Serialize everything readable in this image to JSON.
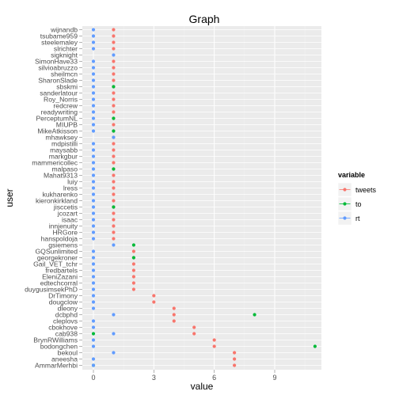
{
  "chart_data": {
    "type": "scatter",
    "title": "Graph",
    "xlabel": "value",
    "ylabel": "user",
    "xlim": [
      -0.5,
      11.3
    ],
    "x_ticks": [
      0,
      3,
      6,
      9
    ],
    "grid": true,
    "legend": {
      "title": "variable",
      "position": "right"
    },
    "users": [
      "wijnandb",
      "tsubame959",
      "steelemaley",
      "slrichter",
      "sigknight",
      "SimonHave33",
      "silvioabruzzo",
      "sheilmcn",
      "SharonSlade",
      "sbskmi",
      "sanderlatour",
      "Roy_Norris",
      "redcrew",
      "readywriting",
      "PerceptumNL",
      "MIUPB",
      "MikeAtkisson",
      "mhawksey",
      "mdpistilli",
      "maysabb",
      "markgbur",
      "mammericollec",
      "malpaso",
      "Mahat9313",
      "luiy",
      "lress",
      "kukharenko",
      "kieronkirkland",
      "jisccetis",
      "jcozart",
      "isaac",
      "innjenuity",
      "HRGore",
      "hanspoldoja",
      "gsiemens",
      "GQSunlimited",
      "georgekroner",
      "Gail_VET_tchr",
      "fredbartels",
      "EleniZazani",
      "edtechcorral",
      "duygusimsekPhD",
      "DrTimony",
      "dougclow",
      "dleony",
      "dcbphd",
      "cleplovs",
      "cbokhove",
      "cab938",
      "BrynRWilliams",
      "bodongchen",
      "bekoul",
      "aneesha",
      "AmmarMerhbi"
    ],
    "series": [
      {
        "name": "tweets",
        "color": "#F8766D",
        "values": [
          1,
          1,
          1,
          1,
          null,
          1,
          1,
          1,
          1,
          1,
          1,
          1,
          1,
          1,
          1,
          1,
          1,
          1,
          1,
          1,
          1,
          1,
          1,
          1,
          1,
          1,
          1,
          1,
          1,
          1,
          1,
          1,
          1,
          1,
          null,
          2,
          2,
          2,
          2,
          2,
          2,
          2,
          3,
          3,
          4,
          4,
          4,
          5,
          5,
          6,
          6,
          7,
          7,
          7
        ]
      },
      {
        "name": "to",
        "color": "#00BA38",
        "values": [
          null,
          null,
          null,
          null,
          null,
          null,
          null,
          null,
          null,
          1,
          null,
          null,
          null,
          null,
          1,
          null,
          1,
          null,
          null,
          null,
          null,
          null,
          1,
          null,
          null,
          null,
          null,
          null,
          1,
          null,
          null,
          null,
          null,
          null,
          2,
          null,
          2,
          null,
          null,
          null,
          null,
          null,
          null,
          null,
          null,
          8,
          null,
          null,
          0,
          null,
          11,
          null,
          null,
          0
        ]
      },
      {
        "name": "rt",
        "color": "#619CFF",
        "values": [
          0,
          0,
          0,
          0,
          1,
          0,
          0,
          0,
          0,
          0,
          0,
          0,
          0,
          0,
          0,
          0,
          0,
          1,
          0,
          0,
          0,
          0,
          0,
          0,
          0,
          0,
          0,
          0,
          0,
          0,
          0,
          0,
          0,
          0,
          1,
          0,
          0,
          0,
          0,
          0,
          0,
          0,
          0,
          0,
          0,
          1,
          0,
          0,
          1,
          0,
          0,
          1,
          0,
          0
        ]
      }
    ]
  }
}
